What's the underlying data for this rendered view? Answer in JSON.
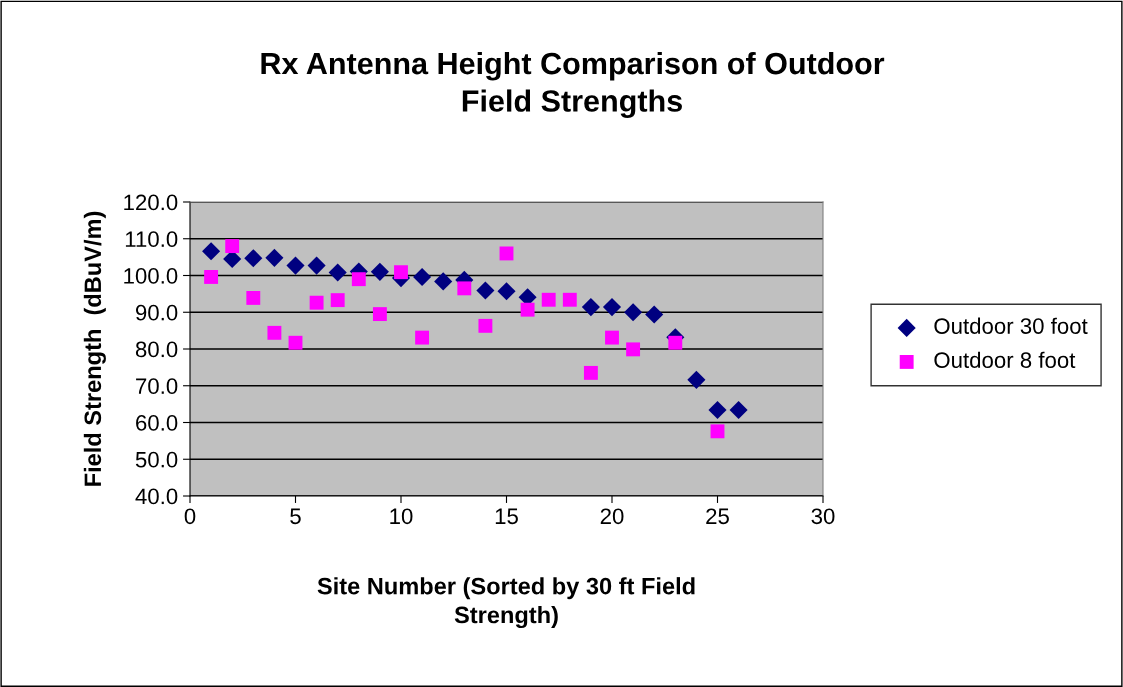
{
  "chart_data": {
    "type": "scatter",
    "title": "Rx Antenna Height Comparison of Outdoor\nField Strengths",
    "xlabel": "Site Number (Sorted by 30 ft Field\nStrength)",
    "ylabel": "Field Strength  (dBuV/m)",
    "xlim": [
      0,
      30
    ],
    "xticks": [
      0,
      5,
      10,
      15,
      20,
      25,
      30
    ],
    "ylim": [
      40,
      120
    ],
    "yticks": [
      {
        "value": 40,
        "label": "40.0"
      },
      {
        "value": 50,
        "label": "50.0"
      },
      {
        "value": 60,
        "label": "60.0"
      },
      {
        "value": 70,
        "label": "70.0"
      },
      {
        "value": 80,
        "label": "80.0"
      },
      {
        "value": 90,
        "label": "90.0"
      },
      {
        "value": 100,
        "label": "100.0"
      },
      {
        "value": 110,
        "label": "110.0"
      },
      {
        "value": 120,
        "label": "120.0"
      }
    ],
    "grid": "y",
    "legend": "right",
    "series": [
      {
        "name": "Outdoor 30 foot",
        "color": "#000080",
        "marker": "diamond",
        "x": [
          1,
          2,
          3,
          4,
          5,
          6,
          7,
          8,
          9,
          10,
          11,
          12,
          13,
          14,
          15,
          16,
          17,
          18,
          19,
          20,
          21,
          22,
          23,
          24,
          25,
          26
        ],
        "values": [
          106.6,
          104.5,
          104.7,
          104.8,
          102.7,
          102.7,
          100.8,
          101.1,
          101.0,
          99.3,
          99.6,
          98.4,
          98.8,
          95.9,
          95.7,
          94.1,
          null,
          null,
          91.4,
          91.4,
          90.0,
          89.4,
          83.2,
          71.6,
          63.4,
          63.4
        ]
      },
      {
        "name": "Outdoor 8 foot",
        "color": "#ff00ff",
        "marker": "square",
        "x": [
          1,
          2,
          3,
          4,
          5,
          6,
          7,
          8,
          9,
          10,
          11,
          13,
          14,
          15,
          16,
          17,
          18,
          19,
          20,
          21,
          23,
          25
        ],
        "values": [
          99.6,
          108.0,
          93.9,
          84.4,
          81.7,
          92.6,
          93.3,
          99.0,
          89.5,
          100.9,
          83.1,
          96.5,
          86.3,
          106.0,
          90.7,
          93.4,
          93.4,
          73.5,
          83.1,
          79.9,
          81.7,
          57.6
        ]
      }
    ]
  }
}
